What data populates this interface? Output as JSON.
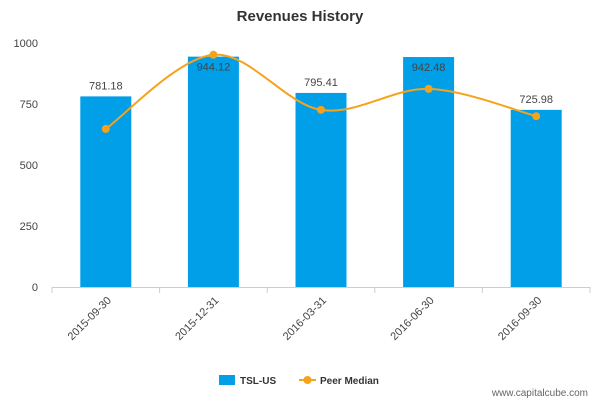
{
  "chart_data": {
    "type": "bar",
    "title": "Revenues History",
    "xlabel": "",
    "ylabel": "",
    "ylim": [
      0,
      1000
    ],
    "yticks": [
      0,
      250,
      500,
      750,
      1000
    ],
    "categories": [
      "2015-09-30",
      "2015-12-31",
      "2016-03-31",
      "2016-06-30",
      "2016-09-30"
    ],
    "series": [
      {
        "name": "TSL-US",
        "type": "bar",
        "color": "#009FE8",
        "values": [
          781.18,
          944.12,
          795.41,
          942.48,
          725.98
        ],
        "labels": [
          "781.18",
          "944.12",
          "795.41",
          "942.48",
          "725.98"
        ]
      },
      {
        "name": "Peer Median",
        "type": "line",
        "color": "#F5A21C",
        "values": [
          648,
          952,
          726,
          812,
          700
        ]
      }
    ],
    "legend_position": "bottom-center",
    "grid": false
  },
  "watermark": "www.capitalcube.com"
}
